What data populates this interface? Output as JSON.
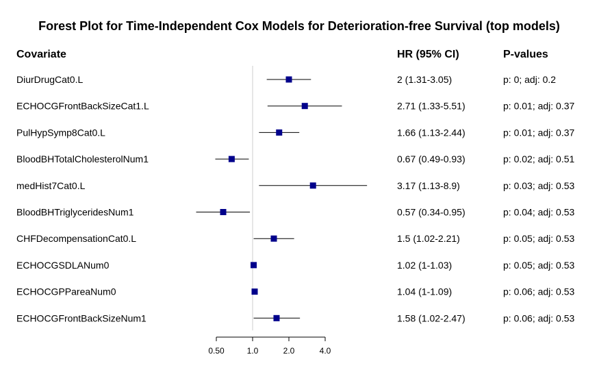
{
  "chart_data": {
    "type": "forest",
    "title": "Forest Plot for Time-Independent Cox Models for Deterioration-free Survival (top models)",
    "headers": {
      "covariate": "Covariate",
      "hr": "HR (95% CI)",
      "pvalues": "P-values"
    },
    "x_scale": "log",
    "xlim": [
      0.5,
      4.0
    ],
    "reference_line": 1.0,
    "x_ticks": [
      {
        "value": 0.5,
        "label": "0.50"
      },
      {
        "value": 1.0,
        "label": "1.0"
      },
      {
        "value": 2.0,
        "label": "2.0"
      },
      {
        "value": 4.0,
        "label": "4.0"
      }
    ],
    "point_color": "#00008b",
    "rows": [
      {
        "covariate": "DiurDrugCat0.L",
        "hr": 2.0,
        "lo": 1.31,
        "hi": 3.05,
        "hr_text": "2 (1.31-3.05)",
        "p_text": "p: 0; adj: 0.2"
      },
      {
        "covariate": "ECHOCGFrontBackSizeCat1.L",
        "hr": 2.71,
        "lo": 1.33,
        "hi": 5.51,
        "hr_text": "2.71 (1.33-5.51)",
        "p_text": "p: 0.01; adj: 0.37"
      },
      {
        "covariate": "PulHypSymp8Cat0.L",
        "hr": 1.66,
        "lo": 1.13,
        "hi": 2.44,
        "hr_text": "1.66 (1.13-2.44)",
        "p_text": "p: 0.01; adj: 0.37"
      },
      {
        "covariate": "BloodBHTotalCholesterolNum1",
        "hr": 0.67,
        "lo": 0.49,
        "hi": 0.93,
        "hr_text": "0.67 (0.49-0.93)",
        "p_text": "p: 0.02; adj: 0.51"
      },
      {
        "covariate": "medHist7Cat0.L",
        "hr": 3.17,
        "lo": 1.13,
        "hi": 8.9,
        "hr_text": "3.17 (1.13-8.9)",
        "p_text": "p: 0.03; adj: 0.53"
      },
      {
        "covariate": "BloodBHTriglyceridesNum1",
        "hr": 0.57,
        "lo": 0.34,
        "hi": 0.95,
        "hr_text": "0.57 (0.34-0.95)",
        "p_text": "p: 0.04; adj: 0.53"
      },
      {
        "covariate": "CHFDecompensationCat0.L",
        "hr": 1.5,
        "lo": 1.02,
        "hi": 2.21,
        "hr_text": "1.5 (1.02-2.21)",
        "p_text": "p: 0.05; adj: 0.53"
      },
      {
        "covariate": "ECHOCGSDLANum0",
        "hr": 1.02,
        "lo": 1.0,
        "hi": 1.03,
        "hr_text": "1.02 (1-1.03)",
        "p_text": "p: 0.05; adj: 0.53"
      },
      {
        "covariate": "ECHOCGPPareaNum0",
        "hr": 1.04,
        "lo": 1.0,
        "hi": 1.09,
        "hr_text": "1.04 (1-1.09)",
        "p_text": "p: 0.06; adj: 0.53"
      },
      {
        "covariate": "ECHOCGFrontBackSizeNum1",
        "hr": 1.58,
        "lo": 1.02,
        "hi": 2.47,
        "hr_text": "1.58 (1.02-2.47)",
        "p_text": "p: 0.06; adj: 0.53"
      }
    ]
  }
}
